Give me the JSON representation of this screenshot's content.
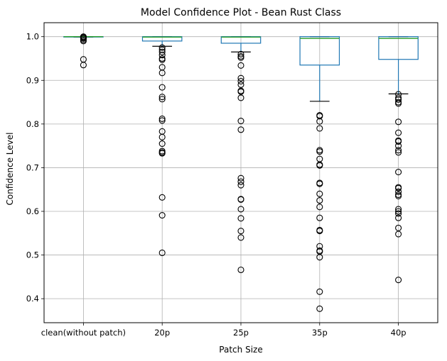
{
  "chart_data": {
    "type": "box",
    "title": "Model Confidence Plot - Bean Rust Class",
    "xlabel": "Patch Size",
    "ylabel": "Confidence Level",
    "ylim": [
      0.345,
      1.032
    ],
    "yticks": [
      "0.4",
      "0.5",
      "0.6",
      "0.7",
      "0.8",
      "0.9",
      "1.0"
    ],
    "grid": true,
    "colors": {
      "box": "#1f77b4",
      "median": "#2ca02c",
      "cap": "#000000",
      "flier": "#000000"
    },
    "categories": [
      "clean(without patch)",
      "20p",
      "25p",
      "35p",
      "40p"
    ],
    "boxes": [
      {
        "label": "clean(without patch)",
        "whislo": 0.999,
        "q1": 0.9995,
        "median": 1.0,
        "q3": 1.0,
        "whishi": 1.0,
        "fliers": [
          1.0,
          0.9995,
          0.999,
          0.997,
          0.996,
          0.993,
          0.99,
          0.948,
          0.935
        ]
      },
      {
        "label": "20p",
        "whislo": 0.978,
        "q1": 0.99,
        "median": 0.999,
        "q3": 1.0,
        "whishi": 1.0,
        "fliers": [
          0.975,
          0.97,
          0.965,
          0.958,
          0.95,
          0.947,
          0.93,
          0.917,
          0.884,
          0.862,
          0.857,
          0.812,
          0.808,
          0.783,
          0.77,
          0.755,
          0.738,
          0.735,
          0.733,
          0.632,
          0.591,
          0.505
        ]
      },
      {
        "label": "25p",
        "whislo": 0.965,
        "q1": 0.985,
        "median": 0.999,
        "q3": 1.0,
        "whishi": 1.0,
        "fliers": [
          0.96,
          0.955,
          0.952,
          0.934,
          0.905,
          0.898,
          0.89,
          0.876,
          0.874,
          0.86,
          0.807,
          0.787,
          0.676,
          0.668,
          0.66,
          0.628,
          0.627,
          0.605,
          0.584,
          0.555,
          0.54,
          0.466
        ]
      },
      {
        "label": "35p",
        "whislo": 0.852,
        "q1": 0.935,
        "median": 0.996,
        "q3": 1.0,
        "whishi": 1.0,
        "fliers": [
          0.82,
          0.818,
          0.806,
          0.79,
          0.74,
          0.737,
          0.72,
          0.707,
          0.705,
          0.665,
          0.663,
          0.64,
          0.625,
          0.61,
          0.585,
          0.557,
          0.555,
          0.52,
          0.51,
          0.508,
          0.495,
          0.416,
          0.377
        ]
      },
      {
        "label": "40p",
        "whislo": 0.869,
        "q1": 0.948,
        "median": 0.996,
        "q3": 1.0,
        "whishi": 1.0,
        "fliers": [
          0.868,
          0.86,
          0.856,
          0.85,
          0.847,
          0.805,
          0.78,
          0.762,
          0.76,
          0.75,
          0.74,
          0.735,
          0.69,
          0.655,
          0.653,
          0.645,
          0.638,
          0.635,
          0.605,
          0.6,
          0.595,
          0.585,
          0.562,
          0.548,
          0.443
        ]
      }
    ]
  }
}
